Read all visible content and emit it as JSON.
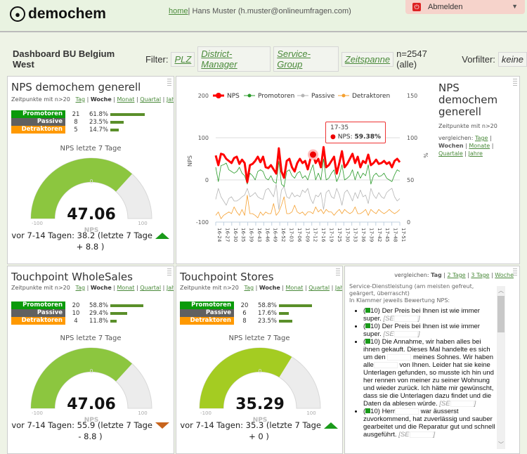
{
  "header": {
    "logo": "demochem",
    "home": "home",
    "user": "| Hans Muster (h.muster@onlineumfragen.com)",
    "logout": "Abmelden"
  },
  "filterbar": {
    "title": "Dashboard BU Belgium West",
    "filter_label": "Filter:",
    "filters": [
      "PLZ",
      "District-Manager",
      "Service-Group",
      "Zeitspanne"
    ],
    "count": "n=2547 (alle)",
    "vorfilter_label": "Vorfilter:",
    "vorfilter_value": "keine"
  },
  "colors": {
    "promotoren": "#0a9a0a",
    "passive": "#606060",
    "detraktoren": "#ff9900",
    "gauge": "#8cc63f",
    "gauge_stores": "#a4cc22",
    "bar": "#5a8f2a"
  },
  "period": {
    "prefix": "Zeitpunkte mit n>20",
    "tag": "Tag",
    "woche": "Woche",
    "monat": "Monat",
    "quartal": "Quartal",
    "jahr": "Jahr"
  },
  "labels": {
    "promotoren": "Promotoren",
    "passive": "Passive",
    "detraktoren": "Detraktoren",
    "gauge_title": "NPS letzte 7 Tage",
    "gauge_unit": "NPS",
    "min": "-100",
    "max": "100",
    "zero": "0"
  },
  "panels": [
    {
      "title": "NPS demochem generell",
      "promotoren": {
        "n": "21",
        "pct": "61.8%",
        "frac": 0.618
      },
      "passive": {
        "n": "8",
        "pct": "23.5%",
        "frac": 0.235
      },
      "detraktoren": {
        "n": "5",
        "pct": "14.7%",
        "frac": 0.147
      },
      "nps": 47.06,
      "nps_text": "47.06",
      "compare": "vor 7-14 Tagen: 38.2 (letzte 7 Tage",
      "trend": "up",
      "delta": "+ 8.8 )"
    },
    {
      "title": "Touchpoint WholeSales",
      "promotoren": {
        "n": "20",
        "pct": "58.8%",
        "frac": 0.588
      },
      "passive": {
        "n": "10",
        "pct": "29.4%",
        "frac": 0.294
      },
      "detraktoren": {
        "n": "4",
        "pct": "11.8%",
        "frac": 0.118
      },
      "nps": 47.06,
      "nps_text": "47.06",
      "compare": "vor 7-14 Tagen: 55.9 (letzte 7 Tage",
      "trend": "down",
      "delta": "- 8.8 )"
    },
    {
      "title": "Touchpoint Stores",
      "promotoren": {
        "n": "20",
        "pct": "58.8%",
        "frac": 0.588
      },
      "passive": {
        "n": "6",
        "pct": "17.6%",
        "frac": 0.176
      },
      "detraktoren": {
        "n": "8",
        "pct": "23.5%",
        "frac": 0.235
      },
      "nps": 35.29,
      "nps_text": "35.29",
      "compare": "vor 7-14 Tagen: 35.3 (letzte 7 Tage",
      "trend": "up",
      "delta": "+ 0 )"
    }
  ],
  "chart_side": {
    "title": "NPS demochem generell",
    "zeit": "Zeitpunkte mit n>20",
    "vergleichen": "vergleichen:",
    "tage": "Tage",
    "wochen": "Wochen",
    "monate": "Monate",
    "quartale": "Quartale",
    "jahre": "Jahre"
  },
  "chart_data": {
    "type": "line",
    "ylabel": "NPS",
    "y2label": "%",
    "ylim": [
      -100,
      200
    ],
    "y2lim": [
      0,
      150
    ],
    "yticks": [
      "200",
      "100",
      "0",
      "-100"
    ],
    "y2ticks": [
      "150",
      "100",
      "50",
      "0"
    ],
    "xticklabels": [
      "16-24",
      "16-27",
      "16-30",
      "16-35",
      "16-39",
      "16-43",
      "16-46",
      "16-49",
      "16-52",
      "17-03",
      "17-06",
      "17-09",
      "17-12",
      "17-16",
      "17-19",
      "17-25",
      "17-30",
      "17-33",
      "17-36",
      "17-39",
      "17-42",
      "17-45",
      "17-48",
      "17-51"
    ],
    "series": [
      {
        "name": "NPS",
        "axis": "left",
        "color": "#ff0000",
        "values": [
          58,
          35,
          62,
          60,
          50,
          45,
          40,
          52,
          55,
          38,
          48,
          40,
          -5,
          35,
          38,
          45,
          55,
          42,
          55,
          30,
          28,
          35,
          25,
          15,
          75,
          20,
          5,
          45,
          50,
          30,
          20,
          40,
          50,
          40,
          45,
          25,
          50,
          60,
          40,
          50,
          30,
          78,
          30,
          35,
          45,
          55,
          15,
          40,
          68,
          30,
          38,
          50,
          62,
          40,
          55,
          30,
          45,
          40,
          60,
          35,
          40,
          48,
          38,
          40,
          45,
          38,
          42,
          30,
          45,
          50,
          42
        ]
      },
      {
        "name": "Promotoren",
        "axis": "right",
        "color": "#2a9a2a",
        "values": [
          65,
          48,
          67,
          68,
          70,
          62,
          60,
          58,
          60,
          65,
          58,
          55,
          45,
          58,
          55,
          50,
          60,
          62,
          60,
          52,
          50,
          55,
          48,
          46,
          72,
          45,
          42,
          60,
          62,
          55,
          52,
          58,
          60,
          52,
          55,
          50,
          60,
          68,
          50,
          58,
          50,
          75,
          50,
          52,
          58,
          62,
          48,
          55,
          68,
          50,
          52,
          55,
          62,
          50,
          60,
          52,
          58,
          55,
          68,
          45,
          55,
          58,
          54,
          55,
          58,
          52,
          50,
          48,
          56,
          62,
          60
        ]
      },
      {
        "name": "Passive",
        "axis": "right",
        "color": "#b5b5b5",
        "values": [
          27,
          40,
          30,
          25,
          20,
          28,
          30,
          25,
          25,
          27,
          30,
          32,
          40,
          30,
          32,
          35,
          30,
          28,
          27,
          38,
          40,
          35,
          30,
          45,
          15,
          38,
          42,
          30,
          28,
          35,
          30,
          32,
          30,
          38,
          35,
          40,
          28,
          22,
          32,
          30,
          35,
          15,
          35,
          38,
          30,
          28,
          40,
          32,
          20,
          35,
          38,
          32,
          25,
          35,
          28,
          38,
          30,
          32,
          22,
          40,
          32,
          28,
          35,
          30,
          28,
          35,
          38,
          40,
          30,
          25,
          28
        ]
      },
      {
        "name": "Detraktoren",
        "axis": "right",
        "color": "#f5a030",
        "values": [
          8,
          12,
          4,
          8,
          10,
          12,
          10,
          18,
          12,
          8,
          15,
          8,
          32,
          10,
          10,
          8,
          5,
          12,
          8,
          12,
          10,
          10,
          22,
          8,
          12,
          20,
          30,
          10,
          10,
          12,
          20,
          12,
          10,
          12,
          8,
          12,
          12,
          10,
          18,
          12,
          15,
          10,
          15,
          12,
          12,
          8,
          12,
          15,
          10,
          15,
          12,
          10,
          12,
          18,
          10,
          10,
          12,
          15,
          8,
          15,
          12,
          10,
          15,
          12,
          10,
          12,
          15,
          12,
          10,
          12,
          15
        ]
      }
    ],
    "tooltip": {
      "x": "17-35",
      "series": "NPS",
      "label": "NPS:",
      "value": "59.38%",
      "index": 37
    },
    "legend": "top",
    "grid": true
  },
  "comments": {
    "compare_label": "vergleichen:",
    "tag": "Tag",
    "tage2": "2 Tage",
    "tage3": "3 Tage",
    "woche": "Woche",
    "intro1": "Service-Dienstleistung (am meisten gefreut, geärgert, überrascht)",
    "intro2": "In Klammer jeweils Bewertung NPS:",
    "items": [
      {
        "score": "10",
        "text": "Der Preis bei Ihnen ist wie immer super.",
        "sig": "[SE"
      },
      {
        "score": "10",
        "text": "Der Preis bei Ihnen ist wie immer super.",
        "sig": "[SE"
      },
      {
        "score": "10",
        "text": "Die Annahme, wir haben alles bei ihnen gekauft. Dieses Mal handelte es sich um den",
        "text2": "meines Sohnes. Wir haben alle",
        "text3": "von Ihnen. Leider hat sie keine Unterlagen gefunden, so musste ich hin und her rennen von meiner zu seiner Wohnung und wieder zurück. Ich hätte mir gewünscht, dass sie die Unterlagen dazu findet und die Daten da ablesen würde.",
        "sig": "[SE"
      },
      {
        "score": "10",
        "text": "Herr",
        "text2": "war äusserst zuvorkommend, hat zuverlässig und sauber gearbeitet und die Reparatur gut und schnell ausgeführt.",
        "sig": "[SE"
      }
    ]
  }
}
